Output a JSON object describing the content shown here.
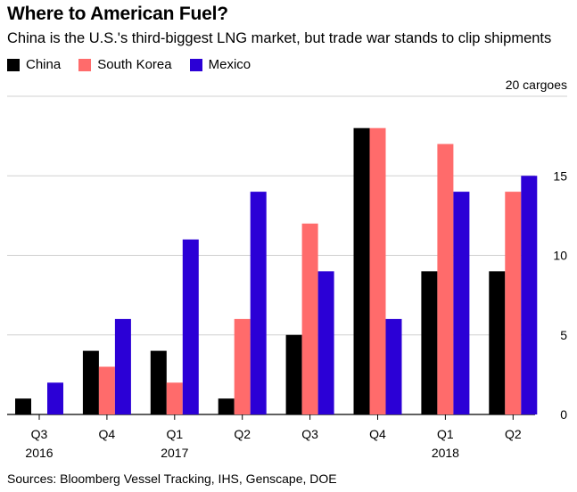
{
  "title": "Where to American Fuel?",
  "subtitle": "China is the U.S.'s third-biggest LNG market, but trade war stands to clip shipments",
  "source": "Sources: Bloomberg Vessel Tracking, IHS, Genscape, DOE",
  "chart_data": {
    "type": "bar",
    "title": "Where to American Fuel?",
    "subtitle": "China is the U.S.'s third-biggest LNG market, but trade war stands to clip shipments",
    "categories": [
      "Q3 2016",
      "Q4",
      "Q1 2017",
      "Q2",
      "Q3",
      "Q4",
      "Q1 2018",
      "Q2"
    ],
    "x_tick_labels": [
      {
        "quarter": "Q3",
        "year": "2016"
      },
      {
        "quarter": "Q4",
        "year": ""
      },
      {
        "quarter": "Q1",
        "year": "2017"
      },
      {
        "quarter": "Q2",
        "year": ""
      },
      {
        "quarter": "Q3",
        "year": ""
      },
      {
        "quarter": "Q4",
        "year": ""
      },
      {
        "quarter": "Q1",
        "year": "2018"
      },
      {
        "quarter": "Q2",
        "year": ""
      }
    ],
    "series": [
      {
        "name": "China",
        "color": "#000000",
        "values": [
          1,
          4,
          4,
          1,
          5,
          18,
          9,
          9
        ]
      },
      {
        "name": "South Korea",
        "color": "#ff6b6b",
        "values": [
          0,
          3,
          2,
          6,
          12,
          18,
          17,
          14
        ]
      },
      {
        "name": "Mexico",
        "color": "#2b00d6",
        "values": [
          2,
          6,
          11,
          14,
          9,
          6,
          14,
          15
        ]
      }
    ],
    "ylim": [
      0,
      20
    ],
    "y_ticks": [
      0,
      5,
      10,
      15,
      20
    ],
    "y_tick_labels": [
      "0",
      "5",
      "10",
      "15",
      "20 cargoes"
    ],
    "ylabel": "",
    "xlabel": "",
    "y_axis_position": "right",
    "grid": true,
    "legend_position": "top-left"
  }
}
